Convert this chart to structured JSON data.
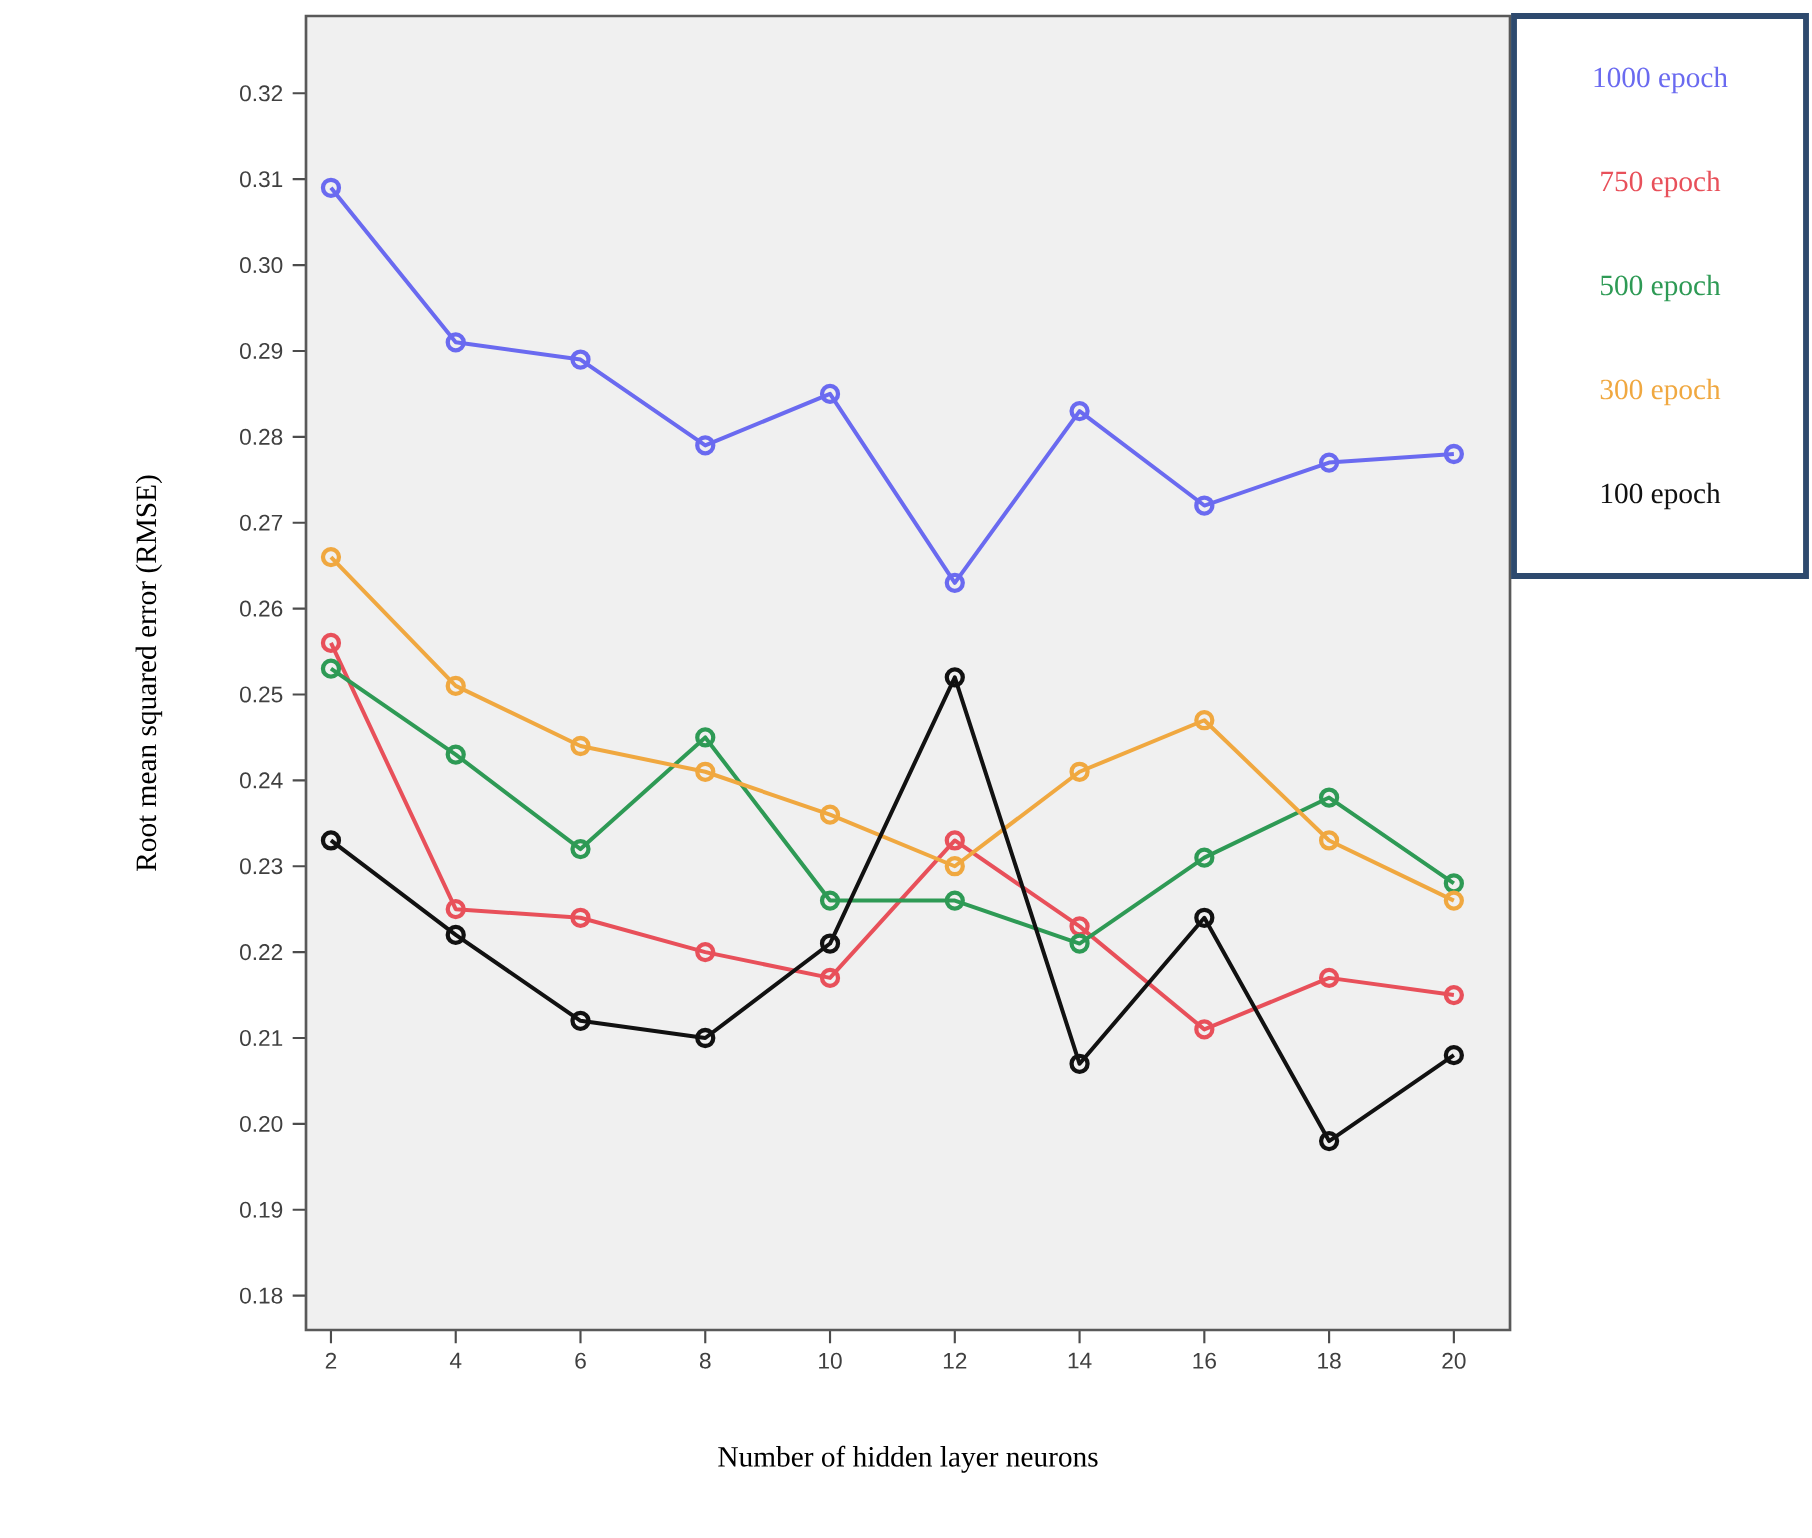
{
  "chart_data": {
    "type": "line",
    "xlabel": "Number of hidden layer neurons",
    "ylabel": "Root mean squared error (RMSE)",
    "x": [
      2,
      4,
      6,
      8,
      10,
      12,
      14,
      16,
      18,
      20
    ],
    "series": [
      {
        "name": "1000 epoch",
        "color": "#6a6af0",
        "values": [
          0.309,
          0.291,
          0.289,
          0.279,
          0.285,
          0.263,
          0.283,
          0.272,
          0.277,
          0.278
        ]
      },
      {
        "name": "750 epoch",
        "color": "#e8505a",
        "values": [
          0.256,
          0.225,
          0.224,
          0.22,
          0.217,
          0.233,
          0.223,
          0.211,
          0.217,
          0.215
        ]
      },
      {
        "name": "500 epoch",
        "color": "#2e9a55",
        "values": [
          0.253,
          0.243,
          0.232,
          0.245,
          0.226,
          0.226,
          0.221,
          0.231,
          0.238,
          0.228
        ]
      },
      {
        "name": "300 epoch",
        "color": "#f0a840",
        "values": [
          0.266,
          0.251,
          0.244,
          0.241,
          0.236,
          0.23,
          0.241,
          0.247,
          0.233,
          0.226
        ]
      },
      {
        "name": "100 epoch",
        "color": "#111111",
        "values": [
          0.233,
          0.222,
          0.212,
          0.21,
          0.221,
          0.252,
          0.207,
          0.224,
          0.198,
          0.208
        ]
      }
    ],
    "xlim": [
      1.6,
      20.9
    ],
    "ylim": [
      0.176,
      0.329
    ],
    "xticks": [
      2,
      4,
      6,
      8,
      10,
      12,
      14,
      16,
      18,
      20
    ],
    "yticks": [
      0.18,
      0.19,
      {
        "value": 0.2,
        "label": "0.20"
      },
      0.21,
      0.22,
      0.23,
      0.24,
      0.25,
      0.26,
      0.27,
      0.28,
      0.29,
      {
        "value": 0.3,
        "label": "0.30"
      },
      0.31,
      0.32
    ],
    "legend": "top right",
    "marker": "circle",
    "line_style": "solid"
  }
}
